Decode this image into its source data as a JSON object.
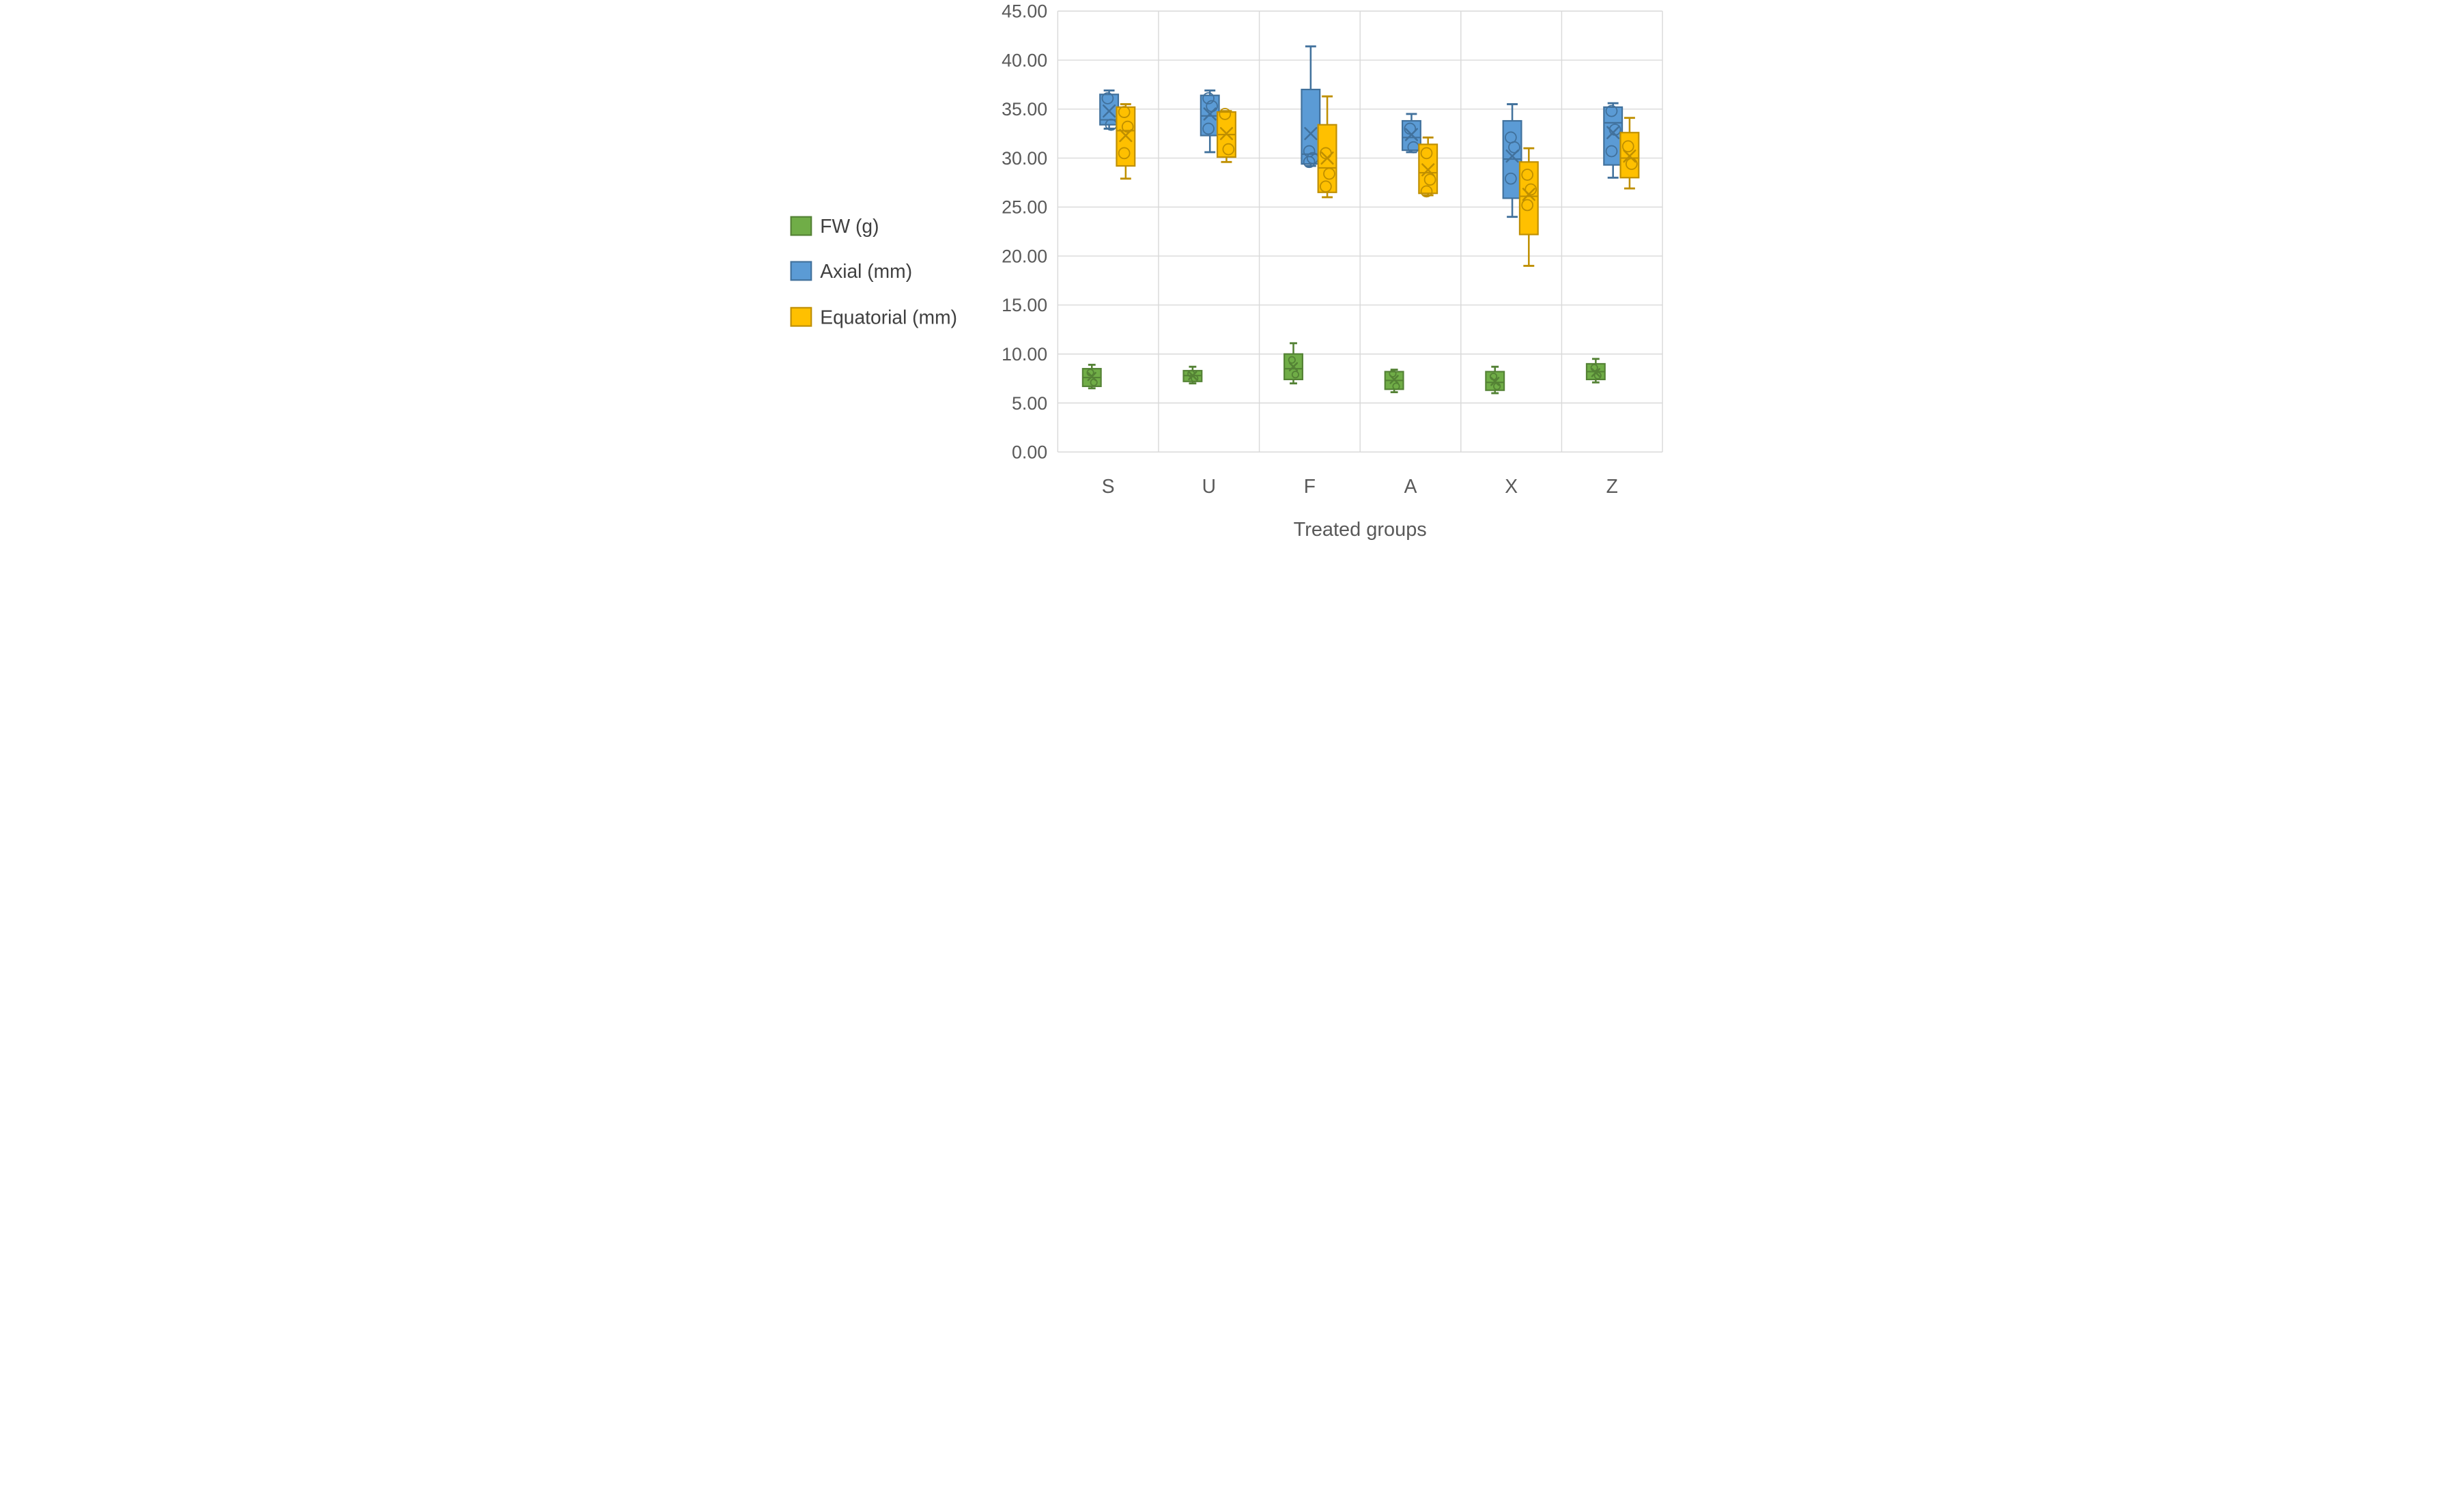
{
  "page": {
    "background": "#ffffff"
  },
  "colors": {
    "grid": "#D9D9D9",
    "tick_text": "#595959",
    "axis_title_text": "#595959",
    "legend_text": "#404040"
  },
  "chart_data": {
    "type": "box",
    "title": "",
    "xlabel": "Treated groups",
    "ylabel": "",
    "categories": [
      "S",
      "U",
      "F",
      "A",
      "X",
      "Z"
    ],
    "y_axis": {
      "min": 0,
      "max": 45,
      "step": 5,
      "ticks": [
        "0.00",
        "5.00",
        "10.00",
        "15.00",
        "20.00",
        "25.00",
        "30.00",
        "35.00",
        "40.00",
        "45.00"
      ]
    },
    "grid": true,
    "legend_position": "left",
    "legend": [
      "FW (g)",
      "Axial (mm)",
      "Equatorial (mm)"
    ],
    "series": [
      {
        "name": "FW (g)",
        "fill": "#70AD47",
        "stroke": "#548235",
        "boxes": [
          {
            "category": "S",
            "min": 6.5,
            "q1": 6.7,
            "median": 7.6,
            "q3": 8.5,
            "max": 8.9,
            "mean": 7.7,
            "points": [
              8.1,
              7.1
            ]
          },
          {
            "category": "U",
            "min": 7.0,
            "q1": 7.2,
            "median": 7.8,
            "q3": 8.3,
            "max": 8.7,
            "mean": 7.8,
            "points": [
              8.0,
              7.5
            ]
          },
          {
            "category": "F",
            "min": 7.0,
            "q1": 7.4,
            "median": 8.5,
            "q3": 10.0,
            "max": 11.1,
            "mean": 8.7,
            "points": [
              9.4,
              7.9
            ]
          },
          {
            "category": "A",
            "min": 6.1,
            "q1": 6.4,
            "median": 7.3,
            "q3": 8.2,
            "max": 8.4,
            "mean": 7.4,
            "points": [
              8.0,
              6.7
            ]
          },
          {
            "category": "X",
            "min": 6.0,
            "q1": 6.3,
            "median": 7.1,
            "q3": 8.2,
            "max": 8.7,
            "mean": 7.2,
            "points": [
              7.7,
              6.7
            ]
          },
          {
            "category": "Z",
            "min": 7.1,
            "q1": 7.4,
            "median": 8.2,
            "q3": 9.0,
            "max": 9.5,
            "mean": 8.1,
            "points": [
              8.6,
              7.8
            ]
          }
        ]
      },
      {
        "name": "Axial (mm)",
        "fill": "#5B9BD5",
        "stroke": "#41719C",
        "boxes": [
          {
            "category": "S",
            "min": 33.0,
            "q1": 33.4,
            "median": 33.9,
            "q3": 36.5,
            "max": 36.9,
            "mean": 34.8,
            "points": [
              36.1,
              33.4
            ]
          },
          {
            "category": "U",
            "min": 30.6,
            "q1": 32.3,
            "median": 34.3,
            "q3": 36.4,
            "max": 36.9,
            "mean": 34.5,
            "points": [
              36.1,
              35.3,
              33.0
            ]
          },
          {
            "category": "F",
            "min": 29.2,
            "q1": 29.4,
            "median": 30.4,
            "q3": 37.0,
            "max": 41.4,
            "mean": 32.5,
            "points": [
              30.7,
              30.0,
              29.6
            ]
          },
          {
            "category": "A",
            "min": 30.6,
            "q1": 30.8,
            "median": 32.1,
            "q3": 33.8,
            "max": 34.5,
            "mean": 32.4,
            "points": [
              33.0,
              31.1
            ]
          },
          {
            "category": "X",
            "min": 24.0,
            "q1": 25.9,
            "median": 29.9,
            "q3": 33.8,
            "max": 35.5,
            "mean": 30.2,
            "points": [
              32.1,
              31.1,
              27.9
            ]
          },
          {
            "category": "Z",
            "min": 28.0,
            "q1": 29.3,
            "median": 33.6,
            "q3": 35.2,
            "max": 35.6,
            "mean": 32.6,
            "points": [
              34.8,
              32.9,
              30.7
            ]
          }
        ]
      },
      {
        "name": "Equatorial (mm)",
        "fill": "#FFC000",
        "stroke": "#BF8F00",
        "boxes": [
          {
            "category": "S",
            "min": 27.9,
            "q1": 29.2,
            "median": 32.8,
            "q3": 35.2,
            "max": 35.5,
            "mean": 32.3,
            "points": [
              34.7,
              33.2,
              30.5
            ]
          },
          {
            "category": "U",
            "min": 29.6,
            "q1": 30.1,
            "median": 32.4,
            "q3": 34.7,
            "max": 34.8,
            "mean": 32.5,
            "points": [
              34.5,
              30.9
            ]
          },
          {
            "category": "F",
            "min": 26.0,
            "q1": 26.5,
            "median": 29.0,
            "q3": 33.4,
            "max": 36.3,
            "mean": 30.0,
            "points": [
              30.5,
              28.4,
              27.1
            ]
          },
          {
            "category": "A",
            "min": 26.2,
            "q1": 26.4,
            "median": 28.5,
            "q3": 31.4,
            "max": 32.1,
            "mean": 28.8,
            "points": [
              30.5,
              27.8,
              26.6
            ]
          },
          {
            "category": "X",
            "min": 19.0,
            "q1": 22.2,
            "median": 26.1,
            "q3": 29.6,
            "max": 31.0,
            "mean": 26.3,
            "points": [
              28.3,
              26.8,
              25.2
            ]
          },
          {
            "category": "Z",
            "min": 26.9,
            "q1": 28.0,
            "median": 30.0,
            "q3": 32.6,
            "max": 34.1,
            "mean": 30.2,
            "points": [
              31.2,
              29.4
            ]
          }
        ]
      }
    ]
  }
}
